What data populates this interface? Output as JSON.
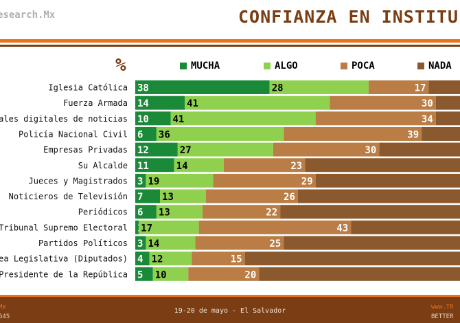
{
  "header": {
    "brand": "esearch.Mx",
    "title": "CONFIANZA EN INSTITUC"
  },
  "footer": {
    "left_line1": "Mx",
    "left_line2": "645",
    "center": "19-20 de mayo - El Salvador",
    "right_line1": "www.TR",
    "right_line2": "BETTER"
  },
  "chart_data": {
    "type": "bar",
    "orientation": "horizontal",
    "stacked": true,
    "unit_label": "%",
    "legend_position": "top",
    "categories": [
      "Iglesia Católica",
      "Fuerza Armada",
      "rtales digitales de noticias",
      "Policía Nacional Civil",
      "Empresas Privadas",
      "Su Alcalde",
      "Jueces y Magistrados",
      "Noticieros de Televisión",
      "Periódicos",
      "Tribunal Supremo Electoral",
      "Partidos Políticos",
      "blea Legislativa (Diputados)",
      "l Presidente de la República"
    ],
    "series": [
      {
        "name": "MUCHA",
        "color": "#1a8a38",
        "label_color": "#ffffff",
        "values": [
          38,
          14,
          10,
          6,
          12,
          11,
          3,
          7,
          6,
          1,
          3,
          4,
          5
        ]
      },
      {
        "name": "ALGO",
        "color": "#8fd14f",
        "label_color": "#000000",
        "values": [
          28,
          41,
          41,
          36,
          27,
          14,
          19,
          13,
          13,
          17,
          14,
          12,
          10
        ]
      },
      {
        "name": "POCA",
        "color": "#b97d45",
        "label_color": "#ffffff",
        "values": [
          17,
          30,
          34,
          39,
          30,
          23,
          29,
          26,
          22,
          43,
          25,
          15,
          20
        ]
      },
      {
        "name": "NADA",
        "color": "#8a5a2e",
        "label_color": "#ffffff",
        "values": [
          17,
          15,
          15,
          19,
          31,
          52,
          49,
          54,
          59,
          39,
          58,
          69,
          65
        ]
      }
    ]
  }
}
